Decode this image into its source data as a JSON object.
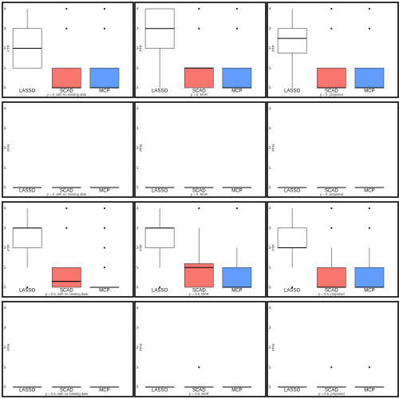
{
  "colors": {
    "LASSO": "#ffffff",
    "SCAD": "#f8766d",
    "MCP": "#619cff"
  },
  "chart_data": [
    {
      "type": "box",
      "ylabel": "#TP",
      "caption": "ρ = 0, with no missing data",
      "categories": [
        "LASSO",
        "SCAD",
        "MCP"
      ],
      "ylim": [
        0,
        4
      ],
      "yticks": [
        0,
        1,
        2,
        3,
        4
      ],
      "boxes": [
        {
          "min": 1,
          "q1": 1,
          "median": 2,
          "q3": 3,
          "max": 4,
          "outliers": []
        },
        {
          "min": 0,
          "q1": 0,
          "median": 0,
          "q3": 1,
          "max": 1,
          "outliers": [
            3,
            4
          ]
        },
        {
          "min": 0,
          "q1": 0,
          "median": 0,
          "q3": 1,
          "max": 1,
          "outliers": [
            3,
            4
          ]
        }
      ]
    },
    {
      "type": "box",
      "ylabel": "#TP",
      "caption": "ρ = 0, MAR",
      "categories": [
        "LASSO",
        "SCAD",
        "MCP"
      ],
      "ylim": [
        0,
        4
      ],
      "yticks": [
        0,
        1,
        2,
        3,
        4
      ],
      "boxes": [
        {
          "min": 0,
          "q1": 2,
          "median": 3,
          "q3": 4,
          "max": 4,
          "outliers": []
        },
        {
          "min": 0,
          "q1": 0,
          "median": 1,
          "q3": 1,
          "max": 1,
          "outliers": [
            3,
            4
          ]
        },
        {
          "min": 0,
          "q1": 0,
          "median": 0,
          "q3": 1,
          "max": 1,
          "outliers": [
            3,
            4
          ]
        }
      ]
    },
    {
      "type": "box",
      "ylabel": "#TP",
      "caption": "ρ = 0, proposed",
      "categories": [
        "LASSO",
        "SCAD",
        "MCP"
      ],
      "ylim": [
        0,
        4
      ],
      "yticks": [
        0,
        1,
        2,
        3,
        4
      ],
      "boxes": [
        {
          "min": 0,
          "q1": 1.75,
          "median": 2.5,
          "q3": 3,
          "max": 4,
          "outliers": []
        },
        {
          "min": 0,
          "q1": 0,
          "median": 0,
          "q3": 1,
          "max": 1,
          "outliers": [
            3,
            4
          ]
        },
        {
          "min": 0,
          "q1": 0,
          "median": 0,
          "q3": 1,
          "max": 1,
          "outliers": [
            3,
            4
          ]
        }
      ]
    },
    {
      "type": "box",
      "ylabel": "#FN",
      "caption": "ρ = 0, with no missing data",
      "categories": [
        "LASSO",
        "SCAD",
        "MCP"
      ],
      "ylim": [
        0,
        4
      ],
      "yticks": [
        0,
        1,
        2,
        3,
        4
      ],
      "boxes": [
        {
          "min": 0,
          "q1": 0,
          "median": 0,
          "q3": 0,
          "max": 0,
          "outliers": []
        },
        {
          "min": 0,
          "q1": 0,
          "median": 0,
          "q3": 0,
          "max": 0,
          "outliers": []
        },
        {
          "min": 0,
          "q1": 0,
          "median": 0,
          "q3": 0,
          "max": 0,
          "outliers": []
        }
      ]
    },
    {
      "type": "box",
      "ylabel": "#FN",
      "caption": "ρ = 0, MAR",
      "categories": [
        "LASSO",
        "SCAD",
        "MCP"
      ],
      "ylim": [
        0,
        4
      ],
      "yticks": [
        0,
        1,
        2,
        3,
        4
      ],
      "boxes": [
        {
          "min": 0,
          "q1": 0,
          "median": 0,
          "q3": 0,
          "max": 0,
          "outliers": []
        },
        {
          "min": 0,
          "q1": 0,
          "median": 0,
          "q3": 0,
          "max": 0,
          "outliers": []
        },
        {
          "min": 0,
          "q1": 0,
          "median": 0,
          "q3": 0,
          "max": 0,
          "outliers": []
        }
      ]
    },
    {
      "type": "box",
      "ylabel": "#FN",
      "caption": "ρ = 0, proposed",
      "categories": [
        "LASSO",
        "SCAD",
        "MCP"
      ],
      "ylim": [
        0,
        4
      ],
      "yticks": [
        0,
        1,
        2,
        3,
        4
      ],
      "boxes": [
        {
          "min": 0,
          "q1": 0,
          "median": 0,
          "q3": 0,
          "max": 0,
          "outliers": []
        },
        {
          "min": 0,
          "q1": 0,
          "median": 0,
          "q3": 0,
          "max": 0,
          "outliers": []
        },
        {
          "min": 0,
          "q1": 0,
          "median": 0,
          "q3": 0,
          "max": 0,
          "outliers": []
        }
      ]
    },
    {
      "type": "box",
      "ylabel": "#TP",
      "caption": "ρ = 0.5, with no missing data",
      "categories": [
        "LASSO",
        "SCAD",
        "MCP"
      ],
      "ylim": [
        0,
        4
      ],
      "yticks": [
        0,
        1,
        2,
        3,
        4
      ],
      "boxes": [
        {
          "min": 1,
          "q1": 2,
          "median": 3,
          "q3": 3,
          "max": 4,
          "outliers": [
            0
          ]
        },
        {
          "min": 0,
          "q1": 0,
          "median": 0.3,
          "q3": 1,
          "max": 1,
          "outliers": [
            3,
            4
          ]
        },
        {
          "min": 0,
          "q1": 0,
          "median": 0,
          "q3": 0,
          "max": 0,
          "outliers": [
            1,
            2,
            3,
            4
          ]
        }
      ]
    },
    {
      "type": "box",
      "ylabel": "#TP",
      "caption": "ρ = 0.5, MAR",
      "categories": [
        "LASSO",
        "SCAD",
        "MCP"
      ],
      "ylim": [
        0,
        4
      ],
      "yticks": [
        0,
        1,
        2,
        3,
        4
      ],
      "boxes": [
        {
          "min": 1,
          "q1": 2,
          "median": 3,
          "q3": 3,
          "max": 4,
          "outliers": [
            0
          ]
        },
        {
          "min": 0,
          "q1": 0,
          "median": 1,
          "q3": 1.2,
          "max": 3,
          "outliers": [
            4
          ]
        },
        {
          "min": 0,
          "q1": 0,
          "median": 0,
          "q3": 1,
          "max": 2,
          "outliers": [
            4
          ]
        }
      ]
    },
    {
      "type": "box",
      "ylabel": "#TP",
      "caption": "ρ = 0.5, proposed",
      "categories": [
        "LASSO",
        "SCAD",
        "MCP"
      ],
      "ylim": [
        0,
        4
      ],
      "yticks": [
        0,
        1,
        2,
        3,
        4
      ],
      "boxes": [
        {
          "min": 1,
          "q1": 2,
          "median": 2,
          "q3": 3,
          "max": 4,
          "outliers": [
            0
          ]
        },
        {
          "min": 0,
          "q1": 0,
          "median": 0,
          "q3": 1,
          "max": 2,
          "outliers": [
            3,
            4
          ]
        },
        {
          "min": 0,
          "q1": 0,
          "median": 0,
          "q3": 1,
          "max": 2,
          "outliers": [
            3,
            4
          ]
        }
      ]
    },
    {
      "type": "box",
      "ylabel": "#FN",
      "caption": "ρ = 0.5, with no missing data",
      "categories": [
        "LASSO",
        "SCAD",
        "MCP"
      ],
      "ylim": [
        0,
        4
      ],
      "yticks": [
        0,
        1,
        2,
        3,
        4
      ],
      "boxes": [
        {
          "min": 0,
          "q1": 0,
          "median": 0,
          "q3": 0,
          "max": 0,
          "outliers": []
        },
        {
          "min": 0,
          "q1": 0,
          "median": 0,
          "q3": 0,
          "max": 0,
          "outliers": []
        },
        {
          "min": 0,
          "q1": 0,
          "median": 0,
          "q3": 0,
          "max": 0,
          "outliers": []
        }
      ]
    },
    {
      "type": "box",
      "ylabel": "#FN",
      "caption": "ρ = 0.5, MAR",
      "categories": [
        "LASSO",
        "SCAD",
        "MCP"
      ],
      "ylim": [
        0,
        4
      ],
      "yticks": [
        0,
        1,
        2,
        3,
        4
      ],
      "boxes": [
        {
          "min": 0,
          "q1": 0,
          "median": 0,
          "q3": 0,
          "max": 0,
          "outliers": []
        },
        {
          "min": 0,
          "q1": 0,
          "median": 0,
          "q3": 0,
          "max": 0,
          "outliers": [
            1
          ]
        },
        {
          "min": 0,
          "q1": 0,
          "median": 0,
          "q3": 0,
          "max": 0,
          "outliers": []
        }
      ]
    },
    {
      "type": "box",
      "ylabel": "#FN",
      "caption": "ρ = 0.5, proposed",
      "categories": [
        "LASSO",
        "SCAD",
        "MCP"
      ],
      "ylim": [
        0,
        4
      ],
      "yticks": [
        0,
        1,
        2,
        3,
        4
      ],
      "boxes": [
        {
          "min": 0,
          "q1": 0,
          "median": 0,
          "q3": 0,
          "max": 0,
          "outliers": []
        },
        {
          "min": 0,
          "q1": 0,
          "median": 0,
          "q3": 0,
          "max": 0,
          "outliers": [
            1
          ]
        },
        {
          "min": 0,
          "q1": 0,
          "median": 0,
          "q3": 0,
          "max": 0,
          "outliers": [
            1
          ]
        }
      ]
    }
  ]
}
